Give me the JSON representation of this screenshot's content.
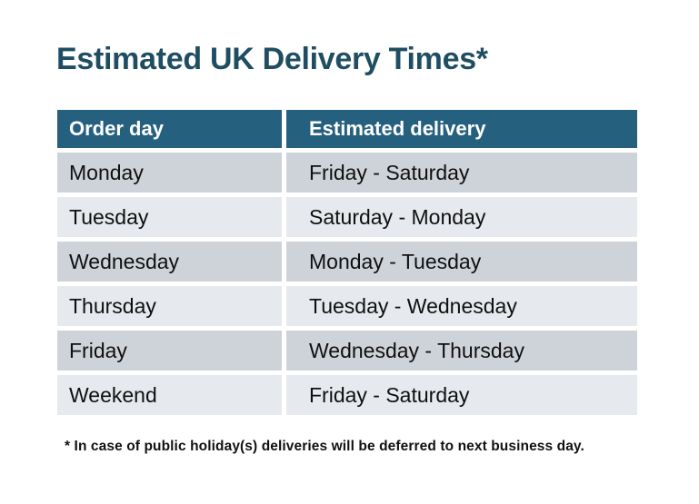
{
  "title": "Estimated UK Delivery Times*",
  "footnote": "* In case of public holiday(s) deliveries will be deferred to next business day.",
  "colors": {
    "page_bg": "#ffffff",
    "title": "#1f4e63",
    "header_bg": "#26607f",
    "header_text": "#ffffff",
    "row_dark": "#ced3da",
    "row_light": "#e6e9ed",
    "cell_text": "#101010"
  },
  "chart_data": {
    "type": "table",
    "title": "Estimated UK Delivery Times*",
    "columns": [
      "Order day",
      "Estimated delivery"
    ],
    "rows": [
      [
        "Monday",
        "Friday - Saturday"
      ],
      [
        "Tuesday",
        "Saturday - Monday"
      ],
      [
        "Wednesday",
        "Monday - Tuesday"
      ],
      [
        "Thursday",
        "Tuesday - Wednesday"
      ],
      [
        "Friday",
        "Wednesday - Thursday"
      ],
      [
        "Weekend",
        "Friday - Saturday"
      ]
    ],
    "footnote": "* In case of public holiday(s) deliveries will be deferred to next business day.",
    "layout_hints": {
      "row_striping": "alternating, first data row darker",
      "grid": "white gaps between cells, no borders"
    }
  }
}
